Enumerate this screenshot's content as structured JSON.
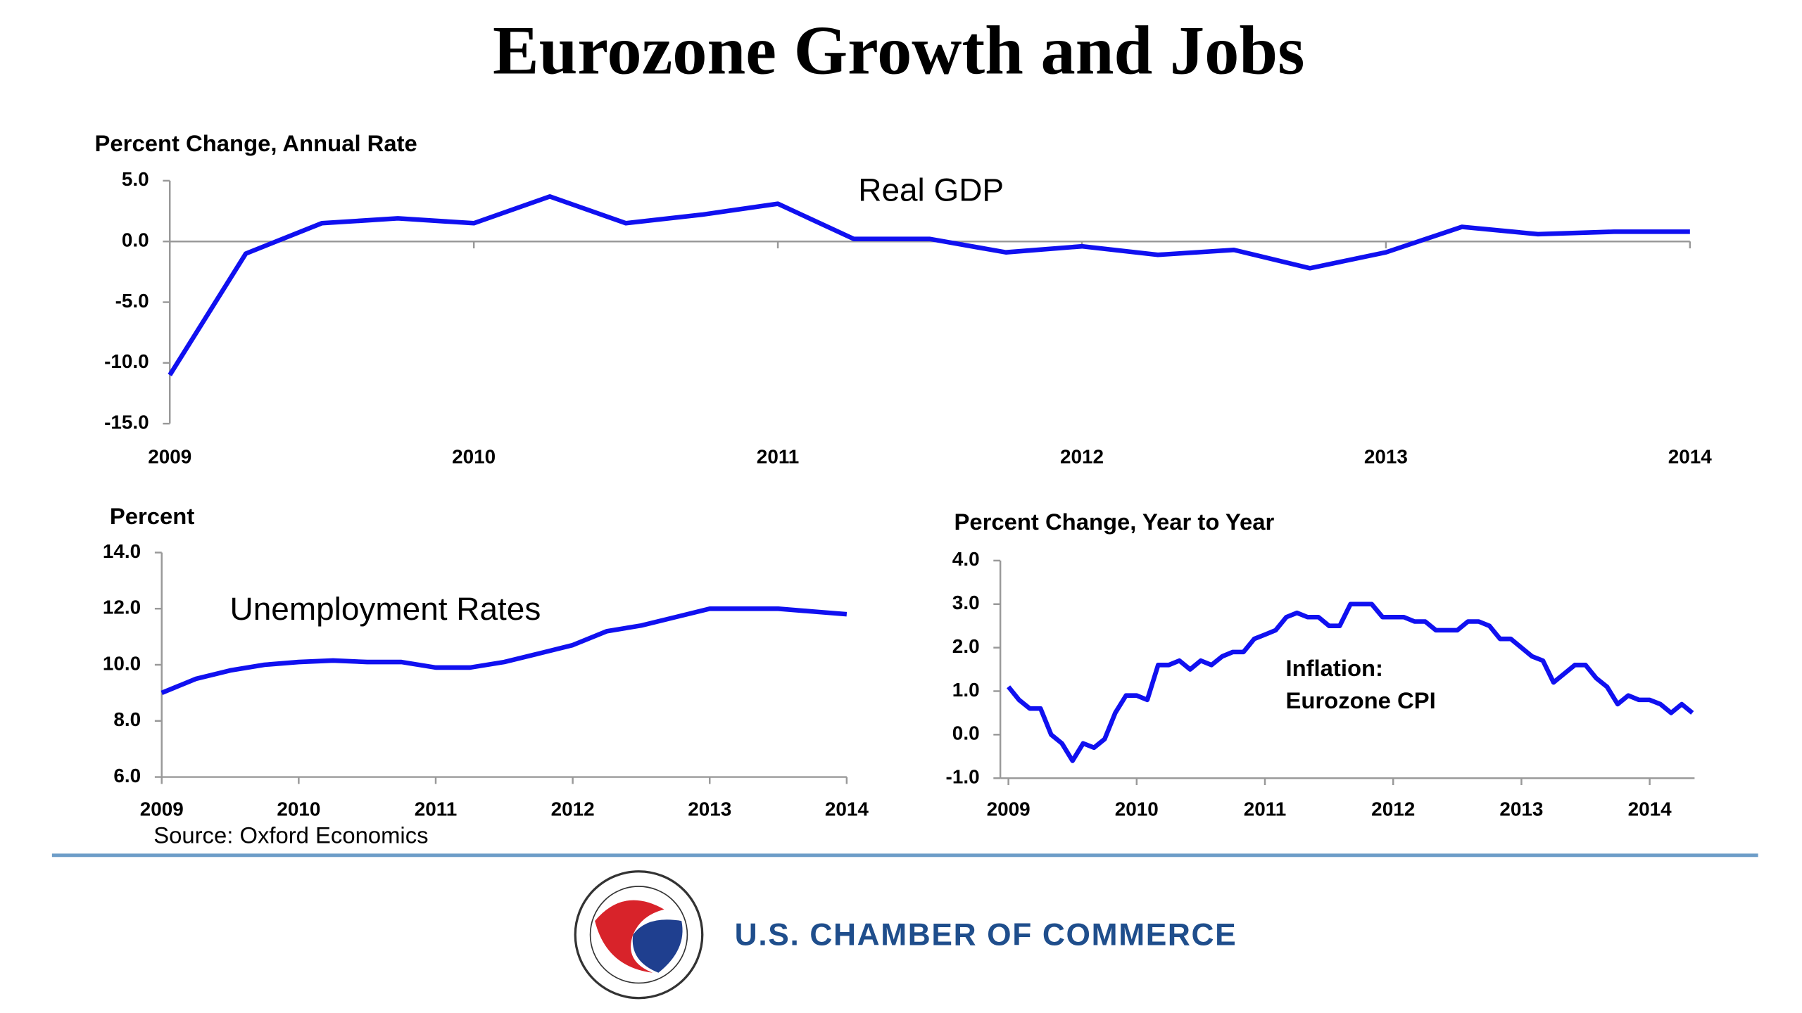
{
  "title": "Eurozone Growth and Jobs",
  "source": "Source: Oxford Economics",
  "footer": "U.S. CHAMBER OF COMMERCE",
  "chart_data": [
    {
      "type": "line",
      "y_label": "Percent Change, Annual Rate",
      "annotations": [
        "Real GDP"
      ],
      "x": [
        2009,
        2009.25,
        2009.5,
        2009.75,
        2010,
        2010.25,
        2010.5,
        2010.75,
        2011,
        2011.25,
        2011.5,
        2011.75,
        2012,
        2012.25,
        2012.5,
        2012.75,
        2013,
        2013.25,
        2013.5,
        2013.75,
        2014
      ],
      "series": [
        {
          "name": "Real GDP",
          "color": "#1010f0",
          "values": [
            -11.0,
            -1.0,
            1.5,
            1.9,
            1.5,
            3.7,
            1.5,
            2.2,
            3.1,
            0.2,
            0.2,
            -0.9,
            -0.4,
            -1.1,
            -0.7,
            -2.2,
            -0.9,
            1.2,
            0.6,
            0.8,
            0.8
          ]
        }
      ],
      "xlim": [
        2009,
        2014
      ],
      "xticks": [
        2009,
        2010,
        2011,
        2012,
        2013,
        2014
      ],
      "ylim": [
        -15,
        5
      ],
      "yticks": [
        {
          "value": -15,
          "label": "-15.0"
        },
        {
          "value": -10,
          "label": "-10.0"
        },
        {
          "value": -5,
          "label": "-5.0"
        },
        {
          "value": 0,
          "label": "0.0"
        },
        {
          "value": 5,
          "label": "5.0"
        }
      ],
      "x_axis_crosses": 0
    },
    {
      "type": "line",
      "y_label": "Percent",
      "annotations": [
        "Unemployment Rates"
      ],
      "x": [
        2009,
        2009.25,
        2009.5,
        2009.75,
        2010,
        2010.25,
        2010.5,
        2010.75,
        2011,
        2011.25,
        2011.5,
        2011.75,
        2012,
        2012.25,
        2012.5,
        2012.75,
        2013,
        2013.25,
        2013.5,
        2013.75,
        2014
      ],
      "series": [
        {
          "name": "Unemployment Rates",
          "color": "#1010f0",
          "values": [
            9.0,
            9.5,
            9.8,
            10.0,
            10.1,
            10.15,
            10.1,
            10.1,
            9.9,
            9.9,
            10.1,
            10.4,
            10.7,
            11.2,
            11.4,
            11.7,
            12.0,
            12.0,
            12.0,
            11.9,
            11.8
          ]
        }
      ],
      "xlim": [
        2009,
        2014
      ],
      "xticks": [
        2009,
        2010,
        2011,
        2012,
        2013,
        2014
      ],
      "ylim": [
        6,
        14
      ],
      "yticks": [
        {
          "value": 6,
          "label": "6.0"
        },
        {
          "value": 8,
          "label": "8.0"
        },
        {
          "value": 10,
          "label": "10.0"
        },
        {
          "value": 12,
          "label": "12.0"
        },
        {
          "value": 14,
          "label": "14.0"
        }
      ]
    },
    {
      "type": "line",
      "y_label": "Percent Change, Year to Year",
      "annotations": [
        "Inflation:",
        "Eurozone CPI"
      ],
      "x": [
        2009,
        2009.083,
        2009.167,
        2009.25,
        2009.333,
        2009.417,
        2009.5,
        2009.583,
        2009.667,
        2009.75,
        2009.833,
        2009.917,
        2010,
        2010.083,
        2010.167,
        2010.25,
        2010.333,
        2010.417,
        2010.5,
        2010.583,
        2010.667,
        2010.75,
        2010.833,
        2010.917,
        2011,
        2011.083,
        2011.167,
        2011.25,
        2011.333,
        2011.417,
        2011.5,
        2011.583,
        2011.667,
        2011.75,
        2011.833,
        2011.917,
        2012,
        2012.083,
        2012.167,
        2012.25,
        2012.333,
        2012.417,
        2012.5,
        2012.583,
        2012.667,
        2012.75,
        2012.833,
        2012.917,
        2013,
        2013.083,
        2013.167,
        2013.25,
        2013.333,
        2013.417,
        2013.5,
        2013.583,
        2013.667,
        2013.75,
        2013.833,
        2013.917,
        2014,
        2014.083,
        2014.167,
        2014.25,
        2014.333
      ],
      "series": [
        {
          "name": "Inflation: Eurozone CPI",
          "color": "#1010f0",
          "values": [
            1.1,
            0.8,
            0.6,
            0.6,
            0.0,
            -0.2,
            -0.6,
            -0.2,
            -0.3,
            -0.1,
            0.5,
            0.9,
            0.9,
            0.8,
            1.6,
            1.6,
            1.7,
            1.5,
            1.7,
            1.6,
            1.8,
            1.9,
            1.9,
            2.2,
            2.3,
            2.4,
            2.7,
            2.8,
            2.7,
            2.7,
            2.5,
            2.5,
            3.0,
            3.0,
            3.0,
            2.7,
            2.7,
            2.7,
            2.6,
            2.6,
            2.4,
            2.4,
            2.4,
            2.6,
            2.6,
            2.5,
            2.2,
            2.2,
            2.0,
            1.8,
            1.7,
            1.2,
            1.4,
            1.6,
            1.6,
            1.3,
            1.1,
            0.7,
            0.9,
            0.8,
            0.8,
            0.7,
            0.5,
            0.7,
            0.5
          ]
        }
      ],
      "xlim": [
        2009,
        2014.35
      ],
      "xticks": [
        2009,
        2010,
        2011,
        2012,
        2013,
        2014
      ],
      "ylim": [
        -1,
        4
      ],
      "yticks": [
        {
          "value": -1,
          "label": "-1.0"
        },
        {
          "value": 0,
          "label": "0.0"
        },
        {
          "value": 1,
          "label": "1.0"
        },
        {
          "value": 2,
          "label": "2.0"
        },
        {
          "value": 3,
          "label": "3.0"
        },
        {
          "value": 4,
          "label": "4.0"
        }
      ]
    }
  ]
}
